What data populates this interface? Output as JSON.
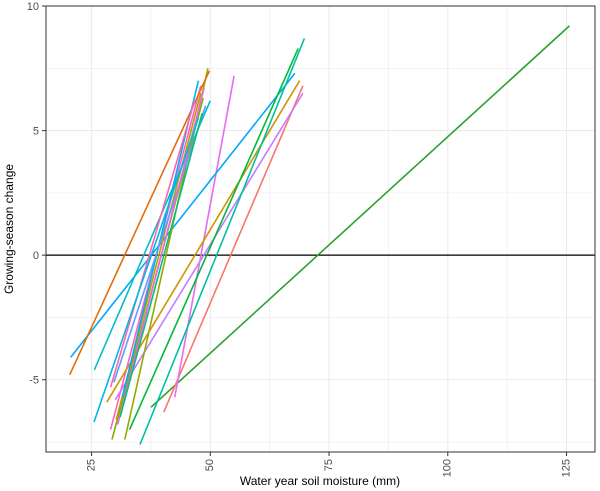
{
  "chart_data": {
    "type": "line",
    "title": "",
    "xlabel": "Water year soil moisture (mm)",
    "ylabel": "Growing-season change",
    "xlim": [
      15.4,
      131
    ],
    "ylim": [
      -7.9,
      10
    ],
    "x_ticks": [
      25,
      50,
      75,
      100,
      125
    ],
    "x_tick_labels": [
      "25",
      "50",
      "75",
      "100",
      "125"
    ],
    "y_ticks": [
      -5,
      0,
      5,
      10
    ],
    "y_tick_labels": [
      "-5",
      "0",
      "5",
      "10"
    ],
    "grid": true,
    "reference_line_y": 0,
    "colors": {
      "background": "#ffffff",
      "grid": "#ebebeb",
      "axis": "#333333",
      "zero_line": "#000000"
    },
    "series": [
      {
        "color": "#2ca02c",
        "x": [
          37.5,
          125.6
        ],
        "y": [
          -6.1,
          9.2
        ]
      },
      {
        "color": "#f8766d",
        "x": [
          40.2,
          69.5
        ],
        "y": [
          -6.3,
          6.8
        ]
      },
      {
        "color": "#e76bf3",
        "x": [
          42.5,
          55.0
        ],
        "y": [
          -5.7,
          7.2
        ]
      },
      {
        "color": "#ff61c3",
        "x": [
          29.0,
          48.0
        ],
        "y": [
          -7.0,
          6.8
        ]
      },
      {
        "color": "#c77cff",
        "x": [
          30.0,
          69.5
        ],
        "y": [
          -5.8,
          6.5
        ]
      },
      {
        "color": "#d39200",
        "x": [
          28.2,
          68.8
        ],
        "y": [
          -5.9,
          7.0
        ]
      },
      {
        "color": "#00a9ff",
        "x": [
          20.6,
          67.8
        ],
        "y": [
          -4.1,
          7.3
        ]
      },
      {
        "color": "#00bfc4",
        "x": [
          25.6,
          50.0
        ],
        "y": [
          -4.6,
          6.2
        ]
      },
      {
        "color": "#00ba38",
        "x": [
          33.0,
          68.5
        ],
        "y": [
          -7.0,
          8.3
        ]
      },
      {
        "color": "#00c19f",
        "x": [
          35.2,
          69.8
        ],
        "y": [
          -7.6,
          8.7
        ]
      },
      {
        "color": "#7cae00",
        "x": [
          29.3,
          48.5
        ],
        "y": [
          -7.4,
          6.3
        ]
      },
      {
        "color": "#93aa00",
        "x": [
          32.0,
          49.5
        ],
        "y": [
          -7.4,
          7.5
        ]
      },
      {
        "color": "#e36c09",
        "x": [
          20.4,
          49.8
        ],
        "y": [
          -4.8,
          7.4
        ]
      },
      {
        "color": "#b79f00",
        "x": [
          30.2,
          48.0
        ],
        "y": [
          -6.6,
          6.5
        ]
      },
      {
        "color": "#00b0f6",
        "x": [
          31.5,
          47.5
        ],
        "y": [
          -5.7,
          7.0
        ]
      },
      {
        "color": "#619cff",
        "x": [
          29.7,
          49.0
        ],
        "y": [
          -5.1,
          6.0
        ]
      },
      {
        "color": "#f564e3",
        "x": [
          30.5,
          48.7
        ],
        "y": [
          -6.8,
          6.7
        ]
      },
      {
        "color": "#00bf7d",
        "x": [
          31.0,
          48.3
        ],
        "y": [
          -6.5,
          5.7
        ]
      },
      {
        "color": "#ff64b0",
        "x": [
          29.0,
          46.7
        ],
        "y": [
          -5.3,
          6.2
        ]
      },
      {
        "color": "#00b8e7",
        "x": [
          25.5,
          47.5
        ],
        "y": [
          -6.7,
          5.5
        ]
      }
    ]
  }
}
